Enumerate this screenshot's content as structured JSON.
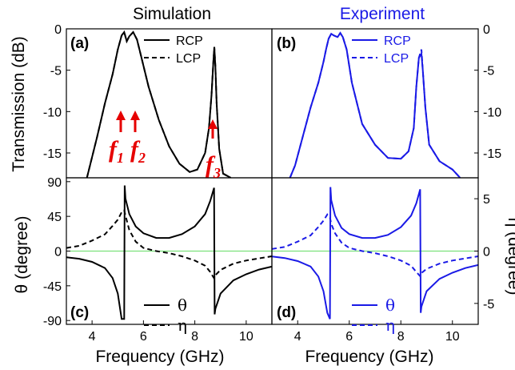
{
  "chart_data": [
    {
      "panel": "(a)",
      "type": "line",
      "title": "Simulation",
      "xlim": [
        3,
        11
      ],
      "ylim": [
        -18,
        0
      ],
      "ylabel": "Transmission (dB)",
      "y_ticks": [
        "0",
        "-5",
        "-10",
        "-15"
      ],
      "legend_position": "top-right",
      "series": [
        {
          "name": "RCP",
          "style": "solid",
          "color": "#000000",
          "x": [
            3.8,
            4.2,
            4.5,
            4.8,
            5.0,
            5.15,
            5.25,
            5.35,
            5.45,
            5.6,
            5.75,
            5.9,
            6.2,
            6.6,
            7.0,
            7.4,
            7.8,
            8.1,
            8.4,
            8.55,
            8.65,
            8.72,
            8.76,
            8.8,
            8.85,
            8.95,
            9.1,
            9.4
          ],
          "y": [
            -18,
            -13,
            -9,
            -5.5,
            -2.5,
            -0.8,
            -0.4,
            -1.5,
            -0.9,
            -0.4,
            -1.3,
            -3.2,
            -7.0,
            -11.0,
            -14.2,
            -16.3,
            -17.3,
            -17.0,
            -15.0,
            -12.0,
            -8.0,
            -4.0,
            -2.2,
            -4.5,
            -9.0,
            -14.5,
            -17.5,
            -18
          ]
        },
        {
          "name": "LCP",
          "style": "dashed",
          "color": "#000000",
          "x": [
            3.8,
            4.2,
            4.5,
            4.8,
            5.0,
            5.15,
            5.25,
            5.35,
            5.45,
            5.6,
            5.75,
            5.9,
            6.2,
            6.6,
            7.0,
            7.4,
            7.8,
            8.1,
            8.4,
            8.55,
            8.65,
            8.72,
            8.76,
            8.8,
            8.85,
            8.95,
            9.1,
            9.4
          ],
          "y": [
            -18,
            -13,
            -9,
            -5.5,
            -2.5,
            -0.8,
            -0.4,
            -1.5,
            -0.9,
            -0.4,
            -1.3,
            -3.2,
            -7.0,
            -11.0,
            -14.2,
            -16.3,
            -17.3,
            -17.0,
            -15.0,
            -12.0,
            -8.0,
            -4.0,
            -2.2,
            -4.5,
            -9.0,
            -14.5,
            -17.5,
            -18
          ]
        }
      ]
    },
    {
      "panel": "(b)",
      "type": "line",
      "title": "Experiment",
      "xlim": [
        3,
        11
      ],
      "ylim": [
        -18,
        0
      ],
      "ylabel": "",
      "y_ticks": [
        "0",
        "-5",
        "-10",
        "-15"
      ],
      "legend_position": "top-right",
      "series": [
        {
          "name": "RCP",
          "style": "solid",
          "color": "#1a1ae6",
          "x": [
            3.7,
            3.9,
            4.2,
            4.5,
            4.8,
            5.0,
            5.1,
            5.2,
            5.3,
            5.4,
            5.55,
            5.65,
            5.75,
            5.9,
            6.1,
            6.5,
            7.0,
            7.5,
            8.0,
            8.3,
            8.5,
            8.6,
            8.7,
            8.8,
            8.85,
            8.95,
            9.1,
            9.5,
            10.0,
            10.3
          ],
          "y": [
            -18,
            -16.5,
            -13,
            -9.5,
            -6.5,
            -4.0,
            -2.5,
            -1.2,
            -0.6,
            -0.8,
            -1.0,
            -0.5,
            -1.0,
            -2.5,
            -6.5,
            -11.5,
            -14.0,
            -15.6,
            -15.7,
            -14.8,
            -12.0,
            -7.0,
            -3.5,
            -3.0,
            -5.0,
            -9.5,
            -14.0,
            -16.0,
            -17.0,
            -18
          ]
        },
        {
          "name": "LCP",
          "style": "dashed",
          "color": "#1a1ae6",
          "x": [
            3.7,
            3.9,
            4.2,
            4.5,
            4.8,
            5.0,
            5.1,
            5.2,
            5.3,
            5.4,
            5.55,
            5.65,
            5.75,
            5.9,
            6.1,
            6.5,
            7.0,
            7.5,
            8.0,
            8.3,
            8.5,
            8.6,
            8.7,
            8.8,
            8.85,
            8.95,
            9.1,
            9.5,
            10.0,
            10.3
          ],
          "y": [
            -18,
            -16.5,
            -13,
            -9.5,
            -6.5,
            -4.0,
            -2.5,
            -1.2,
            -0.6,
            -0.8,
            -1.0,
            -0.5,
            -1.0,
            -2.5,
            -6.5,
            -11.5,
            -14.0,
            -15.6,
            -15.7,
            -14.8,
            -12.0,
            -7.0,
            -3.5,
            -2.5,
            -5.0,
            -9.5,
            -14.0,
            -16.0,
            -17.0,
            -18
          ]
        }
      ]
    },
    {
      "panel": "(c)",
      "type": "line",
      "xlim": [
        3,
        11
      ],
      "ylim": [
        -95,
        95
      ],
      "xlabel": "Frequency (GHz)",
      "ylabel": "θ (degree)",
      "x_ticks": [
        "4",
        "6",
        "8",
        "10"
      ],
      "y_ticks": [
        "90",
        "45",
        "0",
        "-45",
        "-90"
      ],
      "reference_line": {
        "y": 0,
        "color": "#66dd66"
      },
      "legend_position": "bottom-center",
      "series": [
        {
          "name": "θ",
          "style": "solid",
          "color": "#000000",
          "x": [
            3,
            3.5,
            4.0,
            4.5,
            4.8,
            5.0,
            5.15,
            5.25,
            5.27,
            5.3,
            5.45,
            5.7,
            6.0,
            6.5,
            7.0,
            7.5,
            8.0,
            8.4,
            8.6,
            8.75,
            8.77,
            8.8,
            9.0,
            9.5,
            10.0,
            10.5,
            11
          ],
          "y": [
            -8,
            -10,
            -14,
            -22,
            -35,
            -55,
            -88,
            -88,
            85,
            68,
            48,
            32,
            23,
            17,
            17,
            22,
            32,
            48,
            65,
            82,
            -82,
            -75,
            -55,
            -38,
            -30,
            -24,
            -20
          ]
        },
        {
          "name": "η",
          "style": "dashed",
          "color": "#000000",
          "x": [
            3,
            3.5,
            4.0,
            4.5,
            4.8,
            5.0,
            5.15,
            5.25,
            5.3,
            5.45,
            5.7,
            6.0,
            6.5,
            7.0,
            7.5,
            8.0,
            8.4,
            8.6,
            8.75,
            8.8,
            9.0,
            9.5,
            10.0,
            10.5,
            11
          ],
          "y": [
            0.3,
            0.5,
            1.0,
            1.6,
            2.4,
            3.0,
            3.7,
            3.9,
            3.4,
            2.0,
            0.9,
            0.3,
            0,
            -0.2,
            -0.5,
            -0.9,
            -1.4,
            -2.0,
            -2.6,
            -2.3,
            -1.8,
            -1.2,
            -0.9,
            -0.7,
            -0.5
          ]
        }
      ]
    },
    {
      "panel": "(d)",
      "type": "line",
      "xlim": [
        3,
        11
      ],
      "ylim": [
        -95,
        95
      ],
      "xlabel": "Frequency (GHz)",
      "ylabel": "η (degree)",
      "x_ticks": [
        "4",
        "6",
        "8",
        "10"
      ],
      "y_ticks": [
        "5",
        "0",
        "-5"
      ],
      "reference_line": {
        "y": 0,
        "color": "#66dd66"
      },
      "legend_position": "bottom-center",
      "series": [
        {
          "name": "θ",
          "style": "solid",
          "color": "#1a1ae6",
          "x": [
            3,
            3.5,
            4.0,
            4.5,
            4.8,
            5.0,
            5.15,
            5.25,
            5.27,
            5.3,
            5.45,
            5.7,
            6.0,
            6.5,
            7.0,
            7.5,
            8.0,
            8.4,
            8.6,
            8.75,
            8.77,
            8.8,
            9.0,
            9.5,
            10.0,
            10.5,
            11
          ],
          "y": [
            -7,
            -9,
            -13,
            -20,
            -33,
            -52,
            -80,
            -88,
            83,
            66,
            46,
            30,
            22,
            17,
            17,
            21,
            31,
            46,
            62,
            80,
            -80,
            -72,
            -52,
            -36,
            -28,
            -22,
            -18
          ]
        },
        {
          "name": "η",
          "style": "dashed",
          "color": "#1a1ae6",
          "x": [
            3,
            3.5,
            4.0,
            4.5,
            4.8,
            5.0,
            5.15,
            5.25,
            5.3,
            5.45,
            5.7,
            6.0,
            6.5,
            7.0,
            7.5,
            8.0,
            8.4,
            8.6,
            8.75,
            8.8,
            9.0,
            9.5,
            10.0,
            10.5,
            11
          ],
          "y": [
            0.2,
            0.4,
            0.9,
            1.5,
            2.3,
            2.9,
            3.5,
            3.2,
            2.6,
            1.7,
            0.8,
            0.3,
            0,
            -0.2,
            -0.5,
            -0.9,
            -1.4,
            -2.0,
            -2.4,
            -2.1,
            -1.7,
            -1.2,
            -0.9,
            -0.7,
            -0.5
          ]
        }
      ]
    }
  ],
  "annotations": {
    "f1": {
      "letter": "f",
      "sub": "1"
    },
    "f2": {
      "letter": "f",
      "sub": "2"
    },
    "f3": {
      "letter": "f",
      "sub": "3"
    },
    "arrow_color": "#e60000"
  }
}
